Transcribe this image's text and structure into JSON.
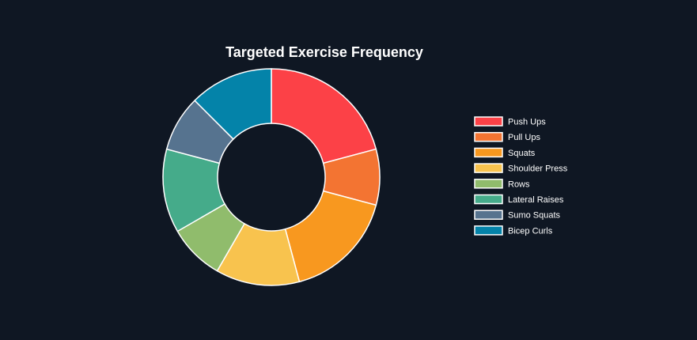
{
  "chart_data": {
    "type": "pie",
    "variant": "donut",
    "title": "Targeted Exercise Frequency",
    "categories": [
      "Push Ups",
      "Pull Ups",
      "Squats",
      "Shoulder Press",
      "Rows",
      "Lateral Raises",
      "Sumo Squats",
      "Bicep Curls"
    ],
    "values": [
      20,
      8,
      16,
      12,
      8,
      12,
      8,
      12
    ],
    "colors": [
      "#fc4147",
      "#f37432",
      "#f8981f",
      "#f8c34e",
      "#90bc6c",
      "#45ab8a",
      "#56738f",
      "#0483a9"
    ],
    "legend_position": "right",
    "slice_border_color": "#ffffff"
  }
}
